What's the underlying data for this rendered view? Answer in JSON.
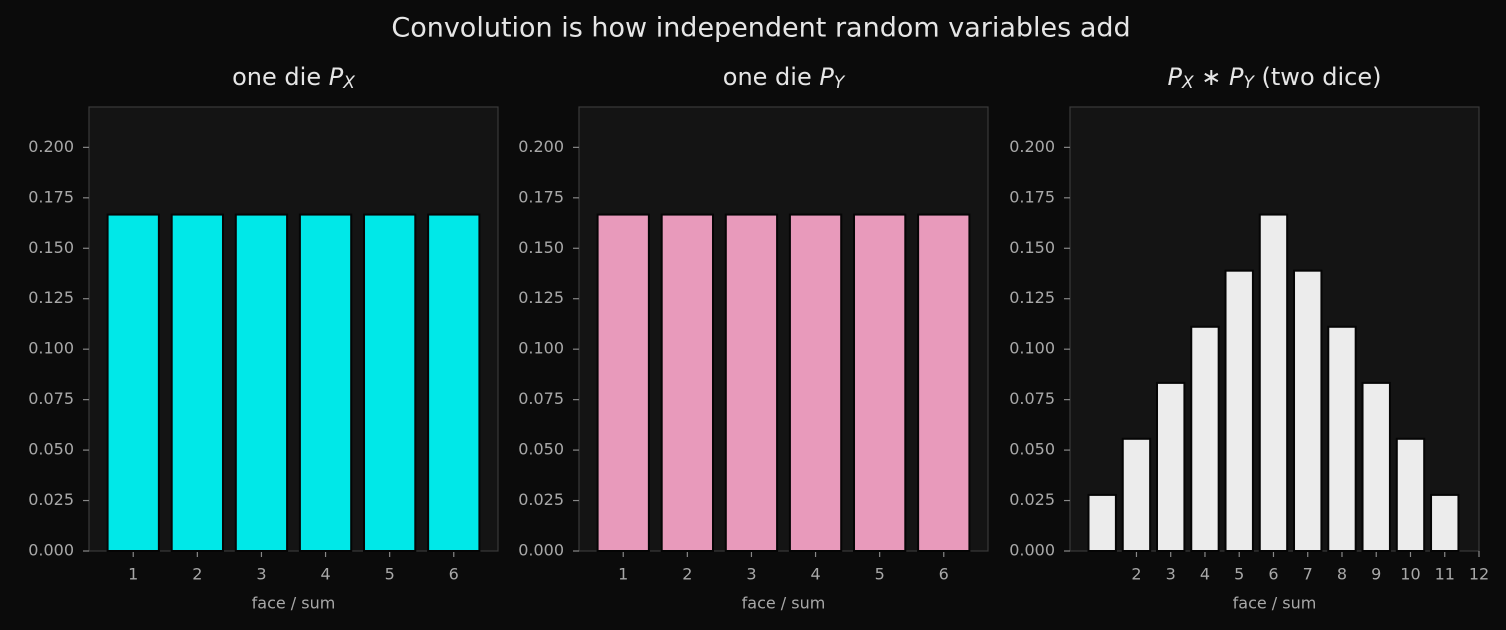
{
  "title": "Convolution is how independent random variables add",
  "chart_data": [
    {
      "type": "bar",
      "title": [
        {
          "text": "one die  "
        },
        {
          "text": "P",
          "style": "italic"
        },
        {
          "text": "X",
          "style": "sub"
        }
      ],
      "x": [
        1,
        2,
        3,
        4,
        5,
        6
      ],
      "values": [
        0.1667,
        0.1667,
        0.1667,
        0.1667,
        0.1667,
        0.1667
      ],
      "color": "#00e8e8",
      "xlabel": "face / sum",
      "xlim": [
        0.31,
        6.69
      ],
      "xticks": [
        1,
        2,
        3,
        4,
        5,
        6
      ],
      "ylim": [
        0,
        0.22
      ],
      "yticks": [
        {
          "value": 0,
          "label": "0.000"
        },
        {
          "value": 0.025,
          "label": "0.025"
        },
        {
          "value": 0.05,
          "label": "0.050"
        },
        {
          "value": 0.075,
          "label": "0.075"
        },
        {
          "value": 0.1,
          "label": "0.100"
        },
        {
          "value": 0.125,
          "label": "0.125"
        },
        {
          "value": 0.15,
          "label": "0.150"
        },
        {
          "value": 0.175,
          "label": "0.175"
        },
        {
          "value": 0.2,
          "label": "0.200"
        }
      ]
    },
    {
      "type": "bar",
      "title": [
        {
          "text": "one die  "
        },
        {
          "text": "P",
          "style": "italic"
        },
        {
          "text": "Y",
          "style": "sub"
        }
      ],
      "x": [
        1,
        2,
        3,
        4,
        5,
        6
      ],
      "values": [
        0.1667,
        0.1667,
        0.1667,
        0.1667,
        0.1667,
        0.1667
      ],
      "color": "#e89abb",
      "xlabel": "face / sum",
      "xlim": [
        0.31,
        6.69
      ],
      "xticks": [
        1,
        2,
        3,
        4,
        5,
        6
      ],
      "ylim": [
        0,
        0.22
      ],
      "yticks": [
        {
          "value": 0,
          "label": "0.000"
        },
        {
          "value": 0.025,
          "label": "0.025"
        },
        {
          "value": 0.05,
          "label": "0.050"
        },
        {
          "value": 0.075,
          "label": "0.075"
        },
        {
          "value": 0.1,
          "label": "0.100"
        },
        {
          "value": 0.125,
          "label": "0.125"
        },
        {
          "value": 0.15,
          "label": "0.150"
        },
        {
          "value": 0.175,
          "label": "0.175"
        },
        {
          "value": 0.2,
          "label": "0.200"
        }
      ]
    },
    {
      "type": "bar",
      "title": [
        {
          "text": "P",
          "style": "italic"
        },
        {
          "text": "X",
          "style": "sub"
        },
        {
          "text": " ∗ "
        },
        {
          "text": "P",
          "style": "italic"
        },
        {
          "text": "Y",
          "style": "sub"
        },
        {
          "text": "  (two dice)"
        }
      ],
      "x": [
        1,
        2,
        3,
        4,
        5,
        6,
        7,
        8,
        9,
        10,
        11
      ],
      "values": [
        0.0278,
        0.0556,
        0.0833,
        0.1111,
        0.1389,
        0.1667,
        0.1389,
        0.1111,
        0.0833,
        0.0556,
        0.0278
      ],
      "color": "#ececec",
      "xlabel": "face / sum",
      "xlim": [
        0.06,
        12
      ],
      "xticks": [
        2,
        3,
        4,
        5,
        6,
        7,
        8,
        9,
        10,
        11,
        12
      ],
      "ylim": [
        0,
        0.22
      ],
      "yticks": [
        {
          "value": 0,
          "label": "0.000"
        },
        {
          "value": 0.025,
          "label": "0.025"
        },
        {
          "value": 0.05,
          "label": "0.050"
        },
        {
          "value": 0.075,
          "label": "0.075"
        },
        {
          "value": 0.1,
          "label": "0.100"
        },
        {
          "value": 0.125,
          "label": "0.125"
        },
        {
          "value": 0.15,
          "label": "0.150"
        },
        {
          "value": 0.175,
          "label": "0.175"
        },
        {
          "value": 0.2,
          "label": "0.200"
        }
      ]
    }
  ]
}
